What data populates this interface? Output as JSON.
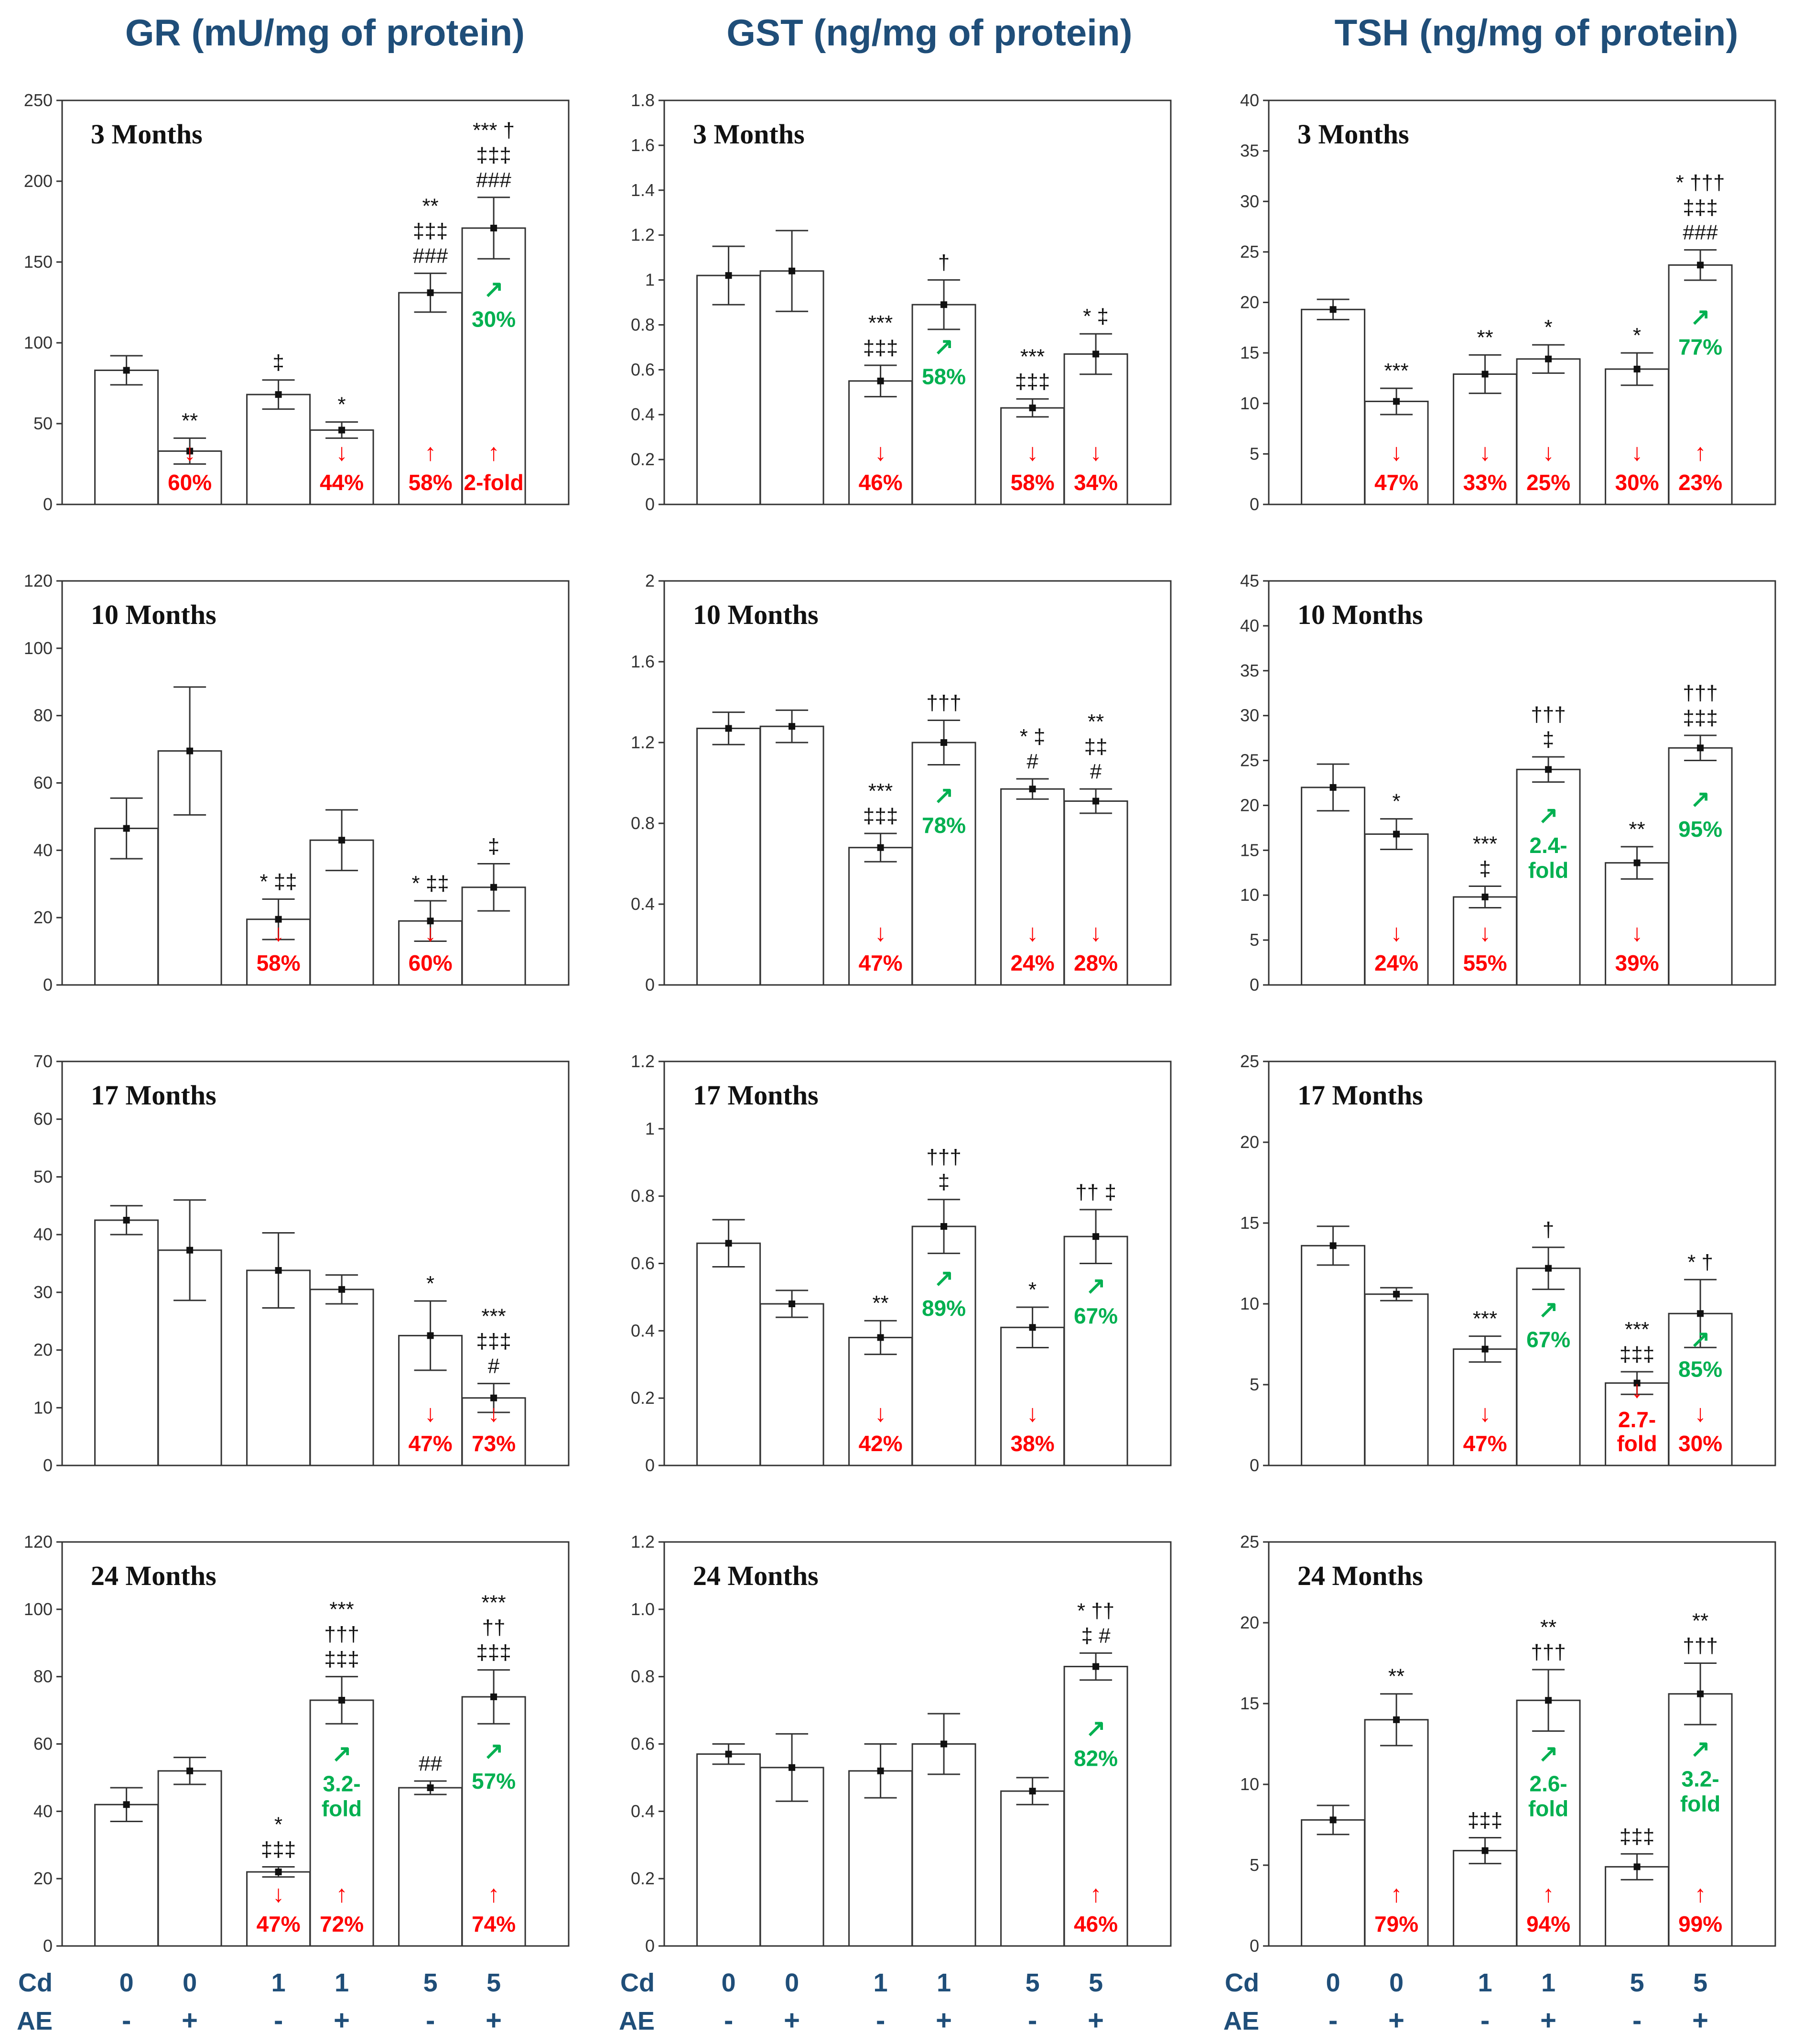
{
  "column_titles": [
    "GR (mU/mg of protein)",
    "GST (ng/mg of protein)",
    "TSH (ng/mg of protein)"
  ],
  "row_labels": [
    "3 Months",
    "10 Months",
    "17 Months",
    "24 Months"
  ],
  "x_axis": {
    "cd_label": "Cd",
    "ae_label": "AE",
    "cd_values": [
      "0",
      "0",
      "1",
      "1",
      "5",
      "5"
    ],
    "ae_values": [
      "-",
      "+",
      "-",
      "+",
      "-",
      "+"
    ]
  },
  "colors": {
    "down": "#ff0000",
    "up_red": "#ff0000",
    "up_green": "#00b050",
    "title": "#1f4e79",
    "axis_text": "#1f4e79"
  },
  "chart_data": [
    {
      "type": "bar",
      "title": "3 Months",
      "ylabel": "GR (mU/mg of protein)",
      "ylim": [
        0,
        250
      ],
      "yticks": [
        "0",
        "50",
        "100",
        "150",
        "200",
        "250"
      ],
      "categories": [
        "Cd0 AE-",
        "Cd0 AE+",
        "Cd1 AE-",
        "Cd1 AE+",
        "Cd5 AE-",
        "Cd5 AE+"
      ],
      "values": [
        83,
        33,
        68,
        46,
        131,
        171
      ],
      "errors": [
        9,
        8,
        9,
        5,
        12,
        19
      ],
      "sig": [
        [],
        [
          "**"
        ],
        [
          "‡"
        ],
        [
          "*"
        ],
        [
          "**",
          "‡‡‡",
          "###"
        ],
        [
          "*** †",
          "‡‡‡",
          "###"
        ]
      ],
      "pct": [
        null,
        {
          "arrow": "↓",
          "text": "60%",
          "color": "red"
        },
        null,
        {
          "arrow": "↓",
          "text": "44%",
          "color": "red"
        },
        {
          "arrow": "↑",
          "text": "58%",
          "color": "red"
        },
        {
          "arrow": "↑",
          "text": "2-fold",
          "color": "red"
        }
      ],
      "green": [
        null,
        null,
        null,
        null,
        null,
        {
          "arrow": "↗",
          "text": "30%"
        }
      ]
    },
    {
      "type": "bar",
      "title": "3 Months",
      "ylabel": "GST (ng/mg of protein)",
      "ylim": [
        0,
        1.8
      ],
      "yticks": [
        "0",
        "0.2",
        "0.4",
        "0.6",
        "0.8",
        "1",
        "1.2",
        "1.4",
        "1.6",
        "1.8"
      ],
      "categories": [
        "Cd0 AE-",
        "Cd0 AE+",
        "Cd1 AE-",
        "Cd1 AE+",
        "Cd5 AE-",
        "Cd5 AE+"
      ],
      "values": [
        1.02,
        1.04,
        0.55,
        0.89,
        0.43,
        0.67
      ],
      "errors": [
        0.13,
        0.18,
        0.07,
        0.11,
        0.04,
        0.09
      ],
      "sig": [
        [],
        [],
        [
          "***",
          "‡‡‡"
        ],
        [
          "†"
        ],
        [
          "***",
          "‡‡‡"
        ],
        [
          "* ‡"
        ]
      ],
      "pct": [
        null,
        null,
        {
          "arrow": "↓",
          "text": "46%",
          "color": "red"
        },
        null,
        {
          "arrow": "↓",
          "text": "58%",
          "color": "red"
        },
        {
          "arrow": "↓",
          "text": "34%",
          "color": "red"
        }
      ],
      "green": [
        null,
        null,
        null,
        {
          "arrow": "↗",
          "text": "58%"
        },
        null,
        null
      ]
    },
    {
      "type": "bar",
      "title": "3 Months",
      "ylabel": "TSH (ng/mg of protein)",
      "ylim": [
        0,
        40
      ],
      "yticks": [
        "0",
        "5",
        "10",
        "15",
        "20",
        "25",
        "30",
        "35",
        "40"
      ],
      "categories": [
        "Cd0 AE-",
        "Cd0 AE+",
        "Cd1 AE-",
        "Cd1 AE+",
        "Cd5 AE-",
        "Cd5 AE+"
      ],
      "values": [
        19.3,
        10.2,
        12.9,
        14.4,
        13.4,
        23.7
      ],
      "errors": [
        1.0,
        1.3,
        1.9,
        1.4,
        1.6,
        1.5
      ],
      "sig": [
        [],
        [
          "***"
        ],
        [
          "**"
        ],
        [
          "*"
        ],
        [
          "*"
        ],
        [
          "* †††",
          "‡‡‡",
          "###"
        ]
      ],
      "pct": [
        null,
        {
          "arrow": "↓",
          "text": "47%",
          "color": "red"
        },
        {
          "arrow": "↓",
          "text": "33%",
          "color": "red"
        },
        {
          "arrow": "↓",
          "text": "25%",
          "color": "red"
        },
        {
          "arrow": "↓",
          "text": "30%",
          "color": "red"
        },
        {
          "arrow": "↑",
          "text": "23%",
          "color": "red"
        }
      ],
      "green": [
        null,
        null,
        null,
        null,
        null,
        {
          "arrow": "↗",
          "text": "77%"
        }
      ]
    },
    {
      "type": "bar",
      "title": "10 Months",
      "ylabel": "GR (mU/mg of protein)",
      "ylim": [
        0,
        120
      ],
      "yticks": [
        "0",
        "20",
        "40",
        "60",
        "80",
        "100",
        "120"
      ],
      "categories": [
        "Cd0 AE-",
        "Cd0 AE+",
        "Cd1 AE-",
        "Cd1 AE+",
        "Cd5 AE-",
        "Cd5 AE+"
      ],
      "values": [
        46.5,
        69.5,
        19.5,
        43,
        19,
        29
      ],
      "errors": [
        9,
        19,
        6,
        9,
        6,
        7
      ],
      "sig": [
        [],
        [],
        [
          "* ‡‡"
        ],
        [],
        [
          "* ‡‡"
        ],
        [
          "‡"
        ]
      ],
      "pct": [
        null,
        null,
        {
          "arrow": "↓",
          "text": "58%",
          "color": "red"
        },
        null,
        {
          "arrow": "↓",
          "text": "60%",
          "color": "red"
        },
        null
      ],
      "green": [
        null,
        null,
        null,
        null,
        null,
        null
      ]
    },
    {
      "type": "bar",
      "title": "10 Months",
      "ylabel": "GST (ng/mg of protein)",
      "ylim": [
        0,
        2
      ],
      "yticks": [
        "0",
        "0.4",
        "0.8",
        "1.2",
        "1.6",
        "2"
      ],
      "categories": [
        "Cd0 AE-",
        "Cd0 AE+",
        "Cd1 AE-",
        "Cd1 AE+",
        "Cd5 AE-",
        "Cd5 AE+"
      ],
      "values": [
        1.27,
        1.28,
        0.68,
        1.2,
        0.97,
        0.91
      ],
      "errors": [
        0.08,
        0.08,
        0.07,
        0.11,
        0.05,
        0.06
      ],
      "sig": [
        [],
        [],
        [
          "***",
          "‡‡‡"
        ],
        [
          "†††"
        ],
        [
          "* ‡",
          "#"
        ],
        [
          "**",
          "‡‡",
          "#"
        ]
      ],
      "pct": [
        null,
        null,
        {
          "arrow": "↓",
          "text": "47%",
          "color": "red"
        },
        null,
        {
          "arrow": "↓",
          "text": "24%",
          "color": "red"
        },
        {
          "arrow": "↓",
          "text": "28%",
          "color": "red"
        }
      ],
      "green": [
        null,
        null,
        null,
        {
          "arrow": "↗",
          "text": "78%"
        },
        null,
        null
      ]
    },
    {
      "type": "bar",
      "title": "10 Months",
      "ylabel": "TSH (ng/mg of protein)",
      "ylim": [
        0,
        45
      ],
      "yticks": [
        "0",
        "5",
        "10",
        "15",
        "20",
        "25",
        "30",
        "35",
        "40",
        "45"
      ],
      "categories": [
        "Cd0 AE-",
        "Cd0 AE+",
        "Cd1 AE-",
        "Cd1 AE+",
        "Cd5 AE-",
        "Cd5 AE+"
      ],
      "values": [
        22,
        16.8,
        9.8,
        24,
        13.6,
        26.4
      ],
      "errors": [
        2.6,
        1.7,
        1.2,
        1.4,
        1.8,
        1.4
      ],
      "sig": [
        [],
        [
          "*"
        ],
        [
          "***",
          "‡"
        ],
        [
          "†††",
          "‡"
        ],
        [
          "**"
        ],
        [
          "†††",
          "‡‡‡"
        ]
      ],
      "pct": [
        null,
        {
          "arrow": "↓",
          "text": "24%",
          "color": "red"
        },
        {
          "arrow": "↓",
          "text": "55%",
          "color": "red"
        },
        null,
        {
          "arrow": "↓",
          "text": "39%",
          "color": "red"
        },
        null
      ],
      "green": [
        null,
        null,
        null,
        {
          "arrow": "↗",
          "text": "2.4-|fold"
        },
        null,
        {
          "arrow": "↗",
          "text": "95%"
        }
      ]
    },
    {
      "type": "bar",
      "title": "17 Months",
      "ylabel": "GR (mU/mg of protein)",
      "ylim": [
        0,
        70
      ],
      "yticks": [
        "0",
        "10",
        "20",
        "30",
        "40",
        "50",
        "60",
        "70"
      ],
      "categories": [
        "Cd0 AE-",
        "Cd0 AE+",
        "Cd1 AE-",
        "Cd1 AE+",
        "Cd5 AE-",
        "Cd5 AE+"
      ],
      "values": [
        42.5,
        37.3,
        33.8,
        30.5,
        22.5,
        11.7
      ],
      "errors": [
        2.5,
        8.7,
        6.5,
        2.5,
        6,
        2.5
      ],
      "sig": [
        [],
        [],
        [],
        [],
        [
          "*"
        ],
        [
          "***",
          "‡‡‡",
          "#"
        ]
      ],
      "pct": [
        null,
        null,
        null,
        null,
        {
          "arrow": "↓",
          "text": "47%",
          "color": "red"
        },
        {
          "arrow": "↓",
          "text": "73%",
          "color": "red"
        }
      ],
      "green": [
        null,
        null,
        null,
        null,
        null,
        null
      ]
    },
    {
      "type": "bar",
      "title": "17 Months",
      "ylabel": "GST (ng/mg of protein)",
      "ylim": [
        0,
        1.2
      ],
      "yticks": [
        "0",
        "0.2",
        "0.4",
        "0.6",
        "0.8",
        "1",
        "1.2"
      ],
      "categories": [
        "Cd0 AE-",
        "Cd0 AE+",
        "Cd1 AE-",
        "Cd1 AE+",
        "Cd5 AE-",
        "Cd5 AE+"
      ],
      "values": [
        0.66,
        0.48,
        0.38,
        0.71,
        0.41,
        0.68
      ],
      "errors": [
        0.07,
        0.04,
        0.05,
        0.08,
        0.06,
        0.08
      ],
      "sig": [
        [],
        [],
        [
          "**"
        ],
        [
          "†††",
          "‡"
        ],
        [
          "*"
        ],
        [
          "†† ‡"
        ]
      ],
      "pct": [
        null,
        null,
        {
          "arrow": "↓",
          "text": "42%",
          "color": "red"
        },
        null,
        {
          "arrow": "↓",
          "text": "38%",
          "color": "red"
        },
        null
      ],
      "green": [
        null,
        null,
        null,
        {
          "arrow": "↗",
          "text": "89%"
        },
        null,
        {
          "arrow": "↗",
          "text": "67%"
        }
      ]
    },
    {
      "type": "bar",
      "title": "17 Months",
      "ylabel": "TSH (ng/mg of protein)",
      "ylim": [
        0,
        25
      ],
      "yticks": [
        "0",
        "5",
        "10",
        "15",
        "20",
        "25"
      ],
      "categories": [
        "Cd0 AE-",
        "Cd0 AE+",
        "Cd1 AE-",
        "Cd1 AE+",
        "Cd5 AE-",
        "Cd5 AE+"
      ],
      "values": [
        13.6,
        10.6,
        7.2,
        12.2,
        5.1,
        9.4
      ],
      "errors": [
        1.2,
        0.4,
        0.8,
        1.3,
        0.7,
        2.1
      ],
      "sig": [
        [],
        [],
        [
          "***"
        ],
        [
          "†"
        ],
        [
          "***",
          "‡‡‡"
        ],
        [
          "* †"
        ]
      ],
      "pct": [
        null,
        null,
        {
          "arrow": "↓",
          "text": "47%",
          "color": "red"
        },
        null,
        {
          "arrow": "↓",
          "text": "2.7-|fold",
          "color": "red"
        },
        {
          "arrow": "↓",
          "text": "30%",
          "color": "red"
        }
      ],
      "green": [
        null,
        null,
        null,
        {
          "arrow": "↗",
          "text": "67%"
        },
        null,
        {
          "arrow": "↗",
          "text": "85%"
        }
      ]
    },
    {
      "type": "bar",
      "title": "24 Months",
      "ylabel": "GR (mU/mg of protein)",
      "ylim": [
        0,
        120
      ],
      "yticks": [
        "0",
        "20",
        "40",
        "60",
        "80",
        "100",
        "120"
      ],
      "categories": [
        "Cd0 AE-",
        "Cd0 AE+",
        "Cd1 AE-",
        "Cd1 AE+",
        "Cd5 AE-",
        "Cd5 AE+"
      ],
      "values": [
        42,
        52,
        22,
        73,
        47,
        74
      ],
      "errors": [
        5,
        4,
        1.5,
        7,
        2,
        8
      ],
      "sig": [
        [],
        [],
        [
          "*",
          "‡‡‡"
        ],
        [
          "***",
          "†††",
          "‡‡‡"
        ],
        [
          "##"
        ],
        [
          "***",
          "††",
          "‡‡‡"
        ]
      ],
      "pct": [
        null,
        null,
        {
          "arrow": "↓",
          "text": "47%",
          "color": "red"
        },
        {
          "arrow": "↑",
          "text": "72%",
          "color": "red"
        },
        null,
        {
          "arrow": "↑",
          "text": "74%",
          "color": "red"
        }
      ],
      "green": [
        null,
        null,
        null,
        {
          "arrow": "↗",
          "text": "3.2-|fold"
        },
        null,
        {
          "arrow": "↗",
          "text": "57%"
        }
      ]
    },
    {
      "type": "bar",
      "title": "24 Months",
      "ylabel": "GST (ng/mg of protein)",
      "ylim": [
        0,
        1.2
      ],
      "yticks": [
        "0",
        "0.2",
        "0.4",
        "0.6",
        "0.8",
        "1.0",
        "1.2"
      ],
      "categories": [
        "Cd0 AE-",
        "Cd0 AE+",
        "Cd1 AE-",
        "Cd1 AE+",
        "Cd5 AE-",
        "Cd5 AE+"
      ],
      "values": [
        0.57,
        0.53,
        0.52,
        0.6,
        0.46,
        0.83
      ],
      "errors": [
        0.03,
        0.1,
        0.08,
        0.09,
        0.04,
        0.04
      ],
      "sig": [
        [],
        [],
        [],
        [],
        [],
        [
          "* ††",
          "‡ #"
        ]
      ],
      "pct": [
        null,
        null,
        null,
        null,
        null,
        {
          "arrow": "↑",
          "text": "46%",
          "color": "red"
        }
      ],
      "green": [
        null,
        null,
        null,
        null,
        null,
        {
          "arrow": "↗",
          "text": "82%"
        }
      ]
    },
    {
      "type": "bar",
      "title": "24 Months",
      "ylabel": "TSH (ng/mg of protein)",
      "ylim": [
        0,
        25
      ],
      "yticks": [
        "0",
        "5",
        "10",
        "15",
        "20",
        "25"
      ],
      "categories": [
        "Cd0 AE-",
        "Cd0 AE+",
        "Cd1 AE-",
        "Cd1 AE+",
        "Cd5 AE-",
        "Cd5 AE+"
      ],
      "values": [
        7.8,
        14,
        5.9,
        15.2,
        4.9,
        15.6
      ],
      "errors": [
        0.9,
        1.6,
        0.8,
        1.9,
        0.8,
        1.9
      ],
      "sig": [
        [],
        [
          "**"
        ],
        [
          "‡‡‡"
        ],
        [
          "**",
          "†††"
        ],
        [
          "‡‡‡"
        ],
        [
          "**",
          "†††"
        ]
      ],
      "pct": [
        null,
        {
          "arrow": "↑",
          "text": "79%",
          "color": "red"
        },
        null,
        {
          "arrow": "↑",
          "text": "94%",
          "color": "red"
        },
        null,
        {
          "arrow": "↑",
          "text": "99%",
          "color": "red"
        }
      ],
      "green": [
        null,
        null,
        null,
        {
          "arrow": "↗",
          "text": "2.6-|fold"
        },
        null,
        {
          "arrow": "↗",
          "text": "3.2-|fold"
        }
      ]
    }
  ]
}
